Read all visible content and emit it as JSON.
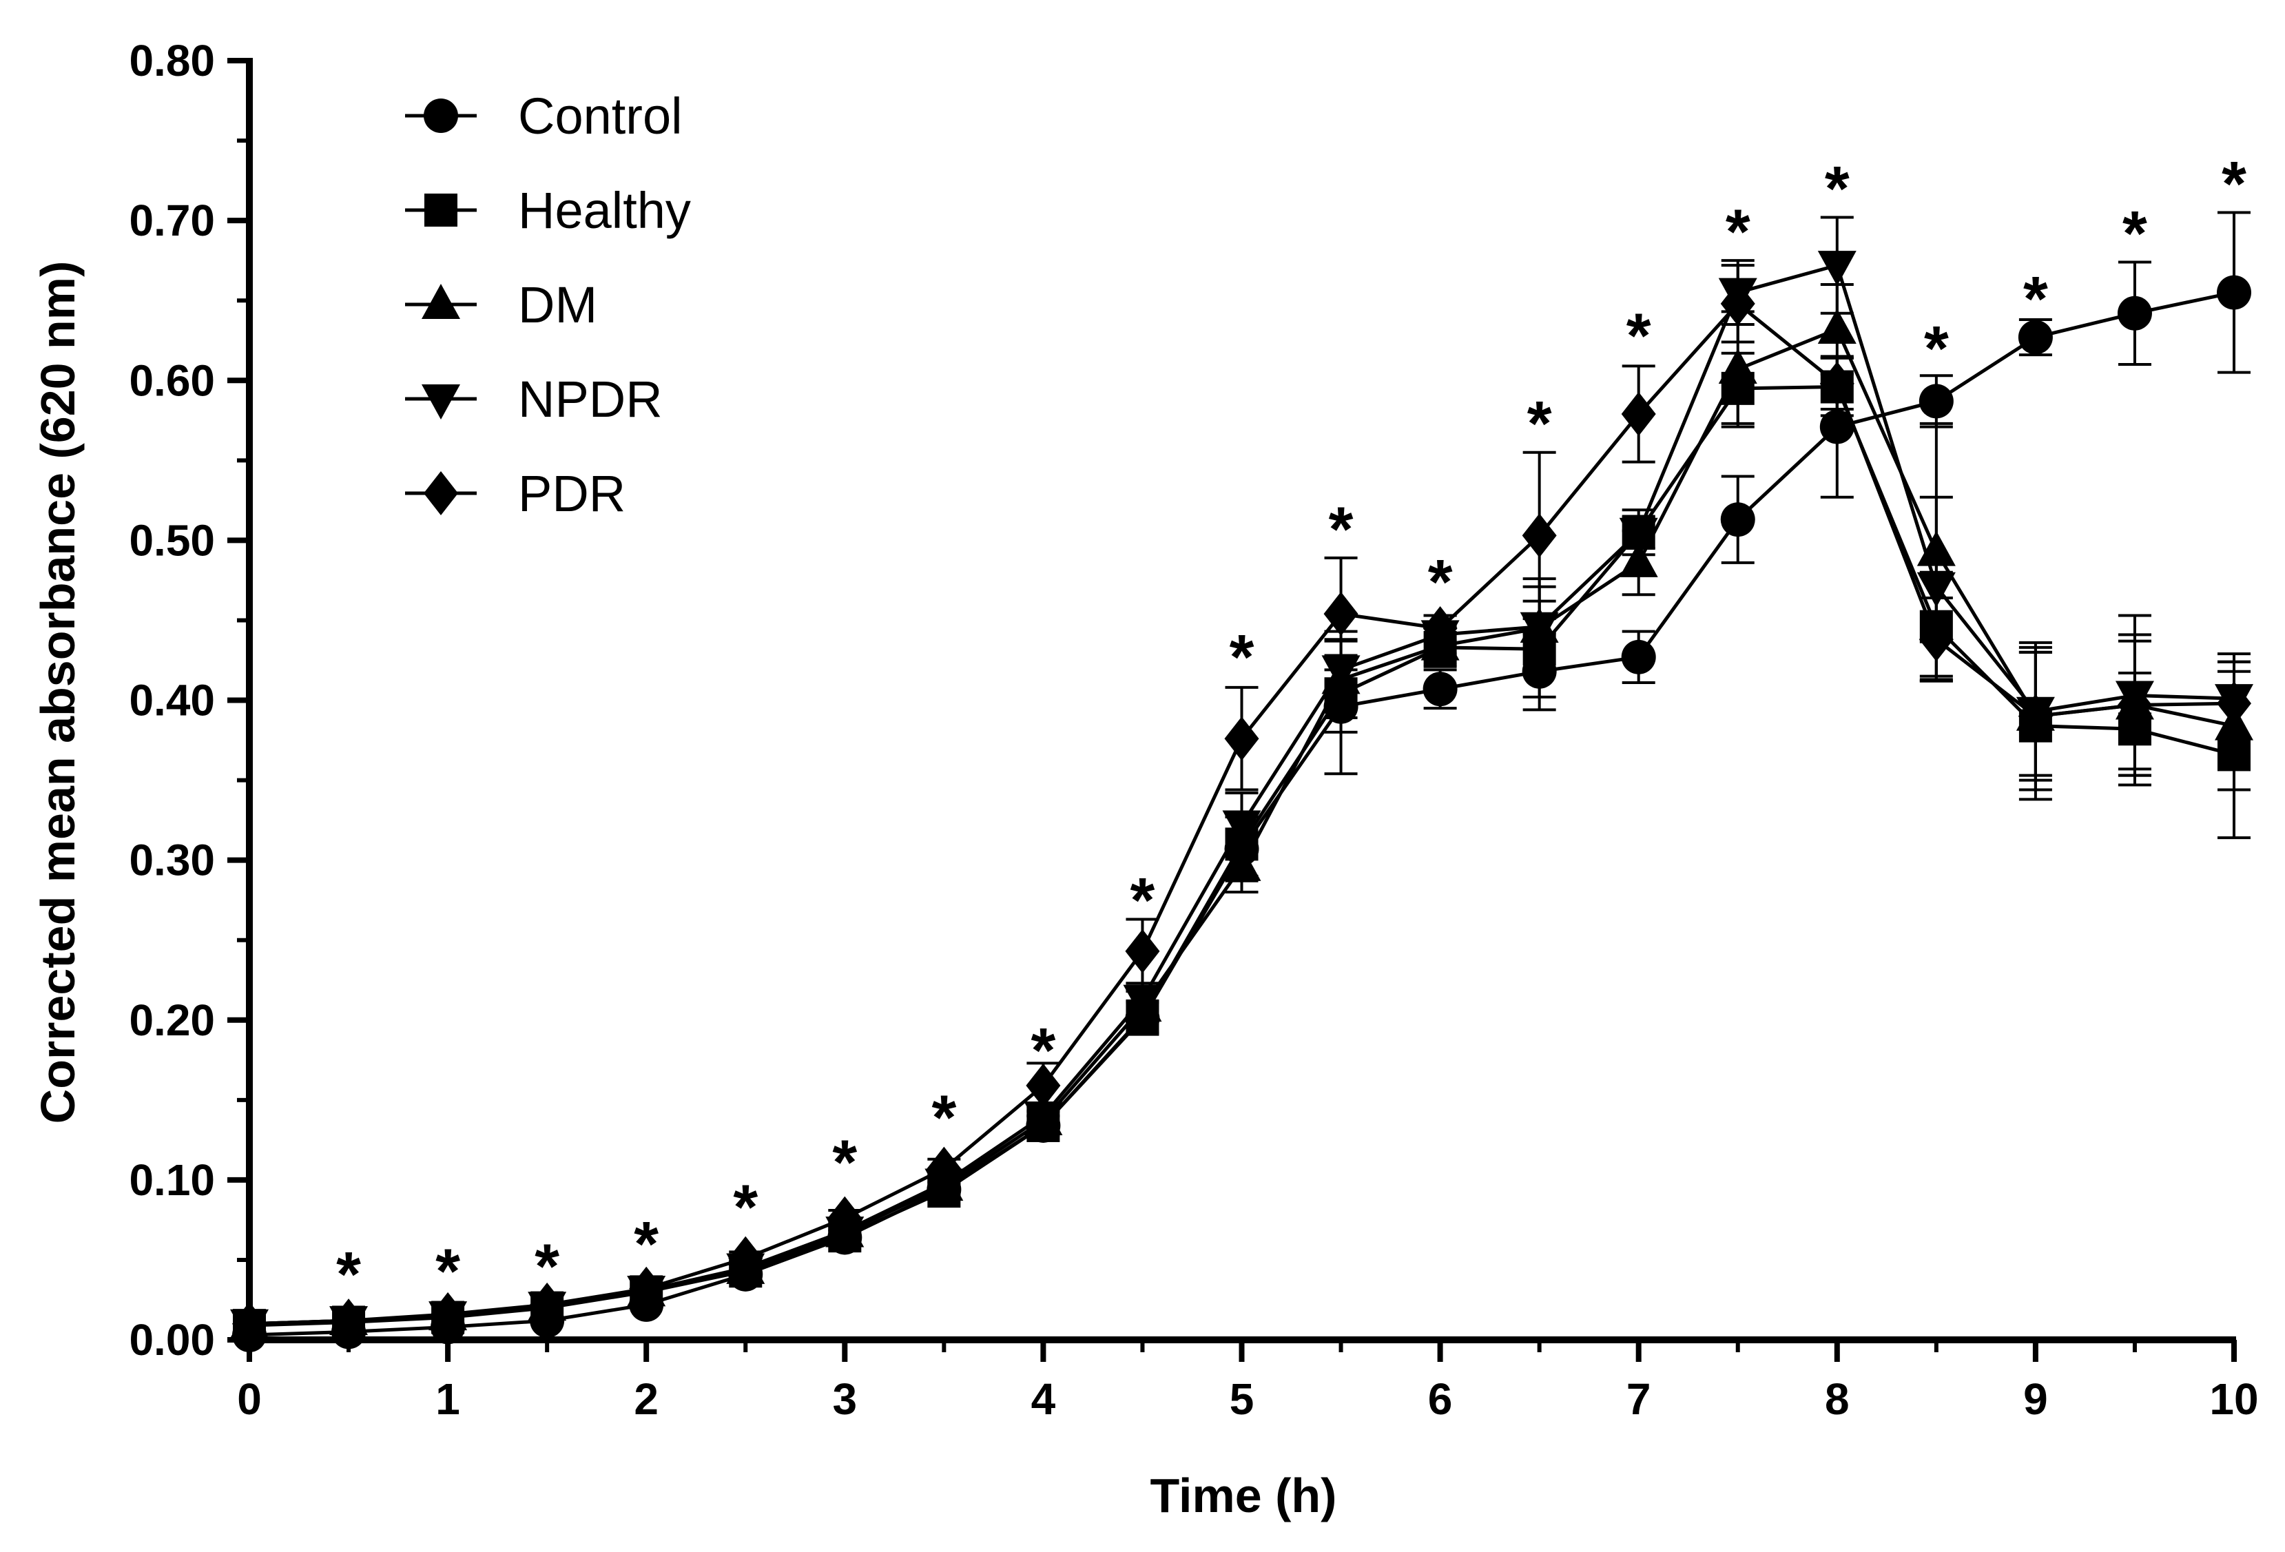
{
  "chart_data": {
    "type": "line",
    "title": "",
    "xlabel": "Time (h)",
    "ylabel": "Corrected mean absorbance (620 nm)",
    "xlim": [
      0,
      10
    ],
    "ylim": [
      0,
      0.8
    ],
    "x_ticks": [
      0,
      1,
      2,
      3,
      4,
      5,
      6,
      7,
      8,
      9,
      10
    ],
    "x_tick_labels": [
      "0",
      "1",
      "2",
      "3",
      "4",
      "5",
      "6",
      "7",
      "8",
      "9",
      "10"
    ],
    "y_ticks": [
      0,
      0.1,
      0.2,
      0.3,
      0.4,
      0.5,
      0.6,
      0.7,
      0.8
    ],
    "y_tick_labels": [
      "0.00",
      "0.10",
      "0.20",
      "0.30",
      "0.40",
      "0.50",
      "0.60",
      "0.70",
      "0.80"
    ],
    "grid": false,
    "legend_position": "top-left",
    "x": [
      0,
      0.5,
      1,
      1.5,
      2,
      2.5,
      3,
      3.5,
      4,
      4.5,
      5,
      5.5,
      6,
      6.5,
      7,
      7.5,
      8,
      8.5,
      9,
      9.5,
      10
    ],
    "series": [
      {
        "name": "Control",
        "marker": "circle",
        "values": [
          0.003,
          0.005,
          0.008,
          0.012,
          0.022,
          0.041,
          0.064,
          0.094,
          0.134,
          0.201,
          0.307,
          0.396,
          0.407,
          0.418,
          0.427,
          0.513,
          0.571,
          0.587,
          0.627,
          0.642,
          0.655
        ],
        "errors": [
          0.002,
          0.002,
          0.002,
          0.003,
          0.003,
          0.004,
          0.004,
          0.005,
          0.006,
          0.01,
          0.02,
          0.042,
          0.012,
          0.024,
          0.016,
          0.027,
          0.044,
          0.016,
          0.011,
          0.032,
          0.05
        ]
      },
      {
        "name": "Healthy",
        "marker": "square",
        "values": [
          0.009,
          0.011,
          0.014,
          0.02,
          0.03,
          0.043,
          0.065,
          0.093,
          0.134,
          0.202,
          0.31,
          0.404,
          0.433,
          0.432,
          0.505,
          0.595,
          0.596,
          0.446,
          0.384,
          0.382,
          0.366
        ],
        "errors": [
          0.002,
          0.002,
          0.002,
          0.003,
          0.003,
          0.004,
          0.004,
          0.005,
          0.006,
          0.01,
          0.02,
          0.024,
          0.012,
          0.03,
          0.01,
          0.022,
          0.018,
          0.034,
          0.046,
          0.035,
          0.052
        ]
      },
      {
        "name": "DM",
        "marker": "triangle-up",
        "values": [
          0.01,
          0.012,
          0.015,
          0.021,
          0.03,
          0.044,
          0.067,
          0.096,
          0.137,
          0.208,
          0.296,
          0.413,
          0.434,
          0.445,
          0.486,
          0.607,
          0.632,
          0.493,
          0.39,
          0.397,
          0.384
        ],
        "errors": [
          0.002,
          0.002,
          0.002,
          0.003,
          0.003,
          0.004,
          0.004,
          0.005,
          0.006,
          0.01,
          0.016,
          0.024,
          0.012,
          0.026,
          0.02,
          0.036,
          0.028,
          0.08,
          0.046,
          0.04,
          0.04
        ]
      },
      {
        "name": "NPDR",
        "marker": "triangle-down",
        "values": [
          0.01,
          0.012,
          0.015,
          0.021,
          0.031,
          0.045,
          0.068,
          0.098,
          0.14,
          0.213,
          0.322,
          0.419,
          0.441,
          0.446,
          0.505,
          0.655,
          0.672,
          0.471,
          0.393,
          0.403,
          0.401
        ],
        "errors": [
          0.002,
          0.002,
          0.002,
          0.003,
          0.003,
          0.004,
          0.004,
          0.005,
          0.006,
          0.01,
          0.02,
          0.024,
          0.012,
          0.03,
          0.014,
          0.02,
          0.03,
          0.056,
          0.04,
          0.05,
          0.028
        ]
      },
      {
        "name": "PDR",
        "marker": "diamond",
        "values": [
          0.01,
          0.012,
          0.016,
          0.022,
          0.032,
          0.051,
          0.076,
          0.107,
          0.159,
          0.243,
          0.376,
          0.454,
          0.445,
          0.503,
          0.579,
          0.648,
          0.598,
          0.438,
          0.39,
          0.397,
          0.398
        ],
        "errors": [
          0.002,
          0.002,
          0.002,
          0.003,
          0.003,
          0.004,
          0.005,
          0.006,
          0.014,
          0.02,
          0.032,
          0.035,
          0.008,
          0.052,
          0.03,
          0.024,
          0.016,
          0.026,
          0.04,
          0.044,
          0.026
        ]
      }
    ],
    "annotations": {
      "symbol": "*",
      "x": [
        0.5,
        1,
        1.5,
        2,
        2.5,
        3,
        3.5,
        4,
        4.5,
        5,
        5.5,
        6,
        6.5,
        7,
        7.5,
        8,
        8.5,
        9,
        9.5,
        10
      ],
      "y": [
        0.042,
        0.044,
        0.047,
        0.061,
        0.084,
        0.112,
        0.14,
        0.182,
        0.276,
        0.428,
        0.508,
        0.475,
        0.574,
        0.629,
        0.694,
        0.721,
        0.621,
        0.652,
        0.693,
        0.724
      ]
    }
  }
}
